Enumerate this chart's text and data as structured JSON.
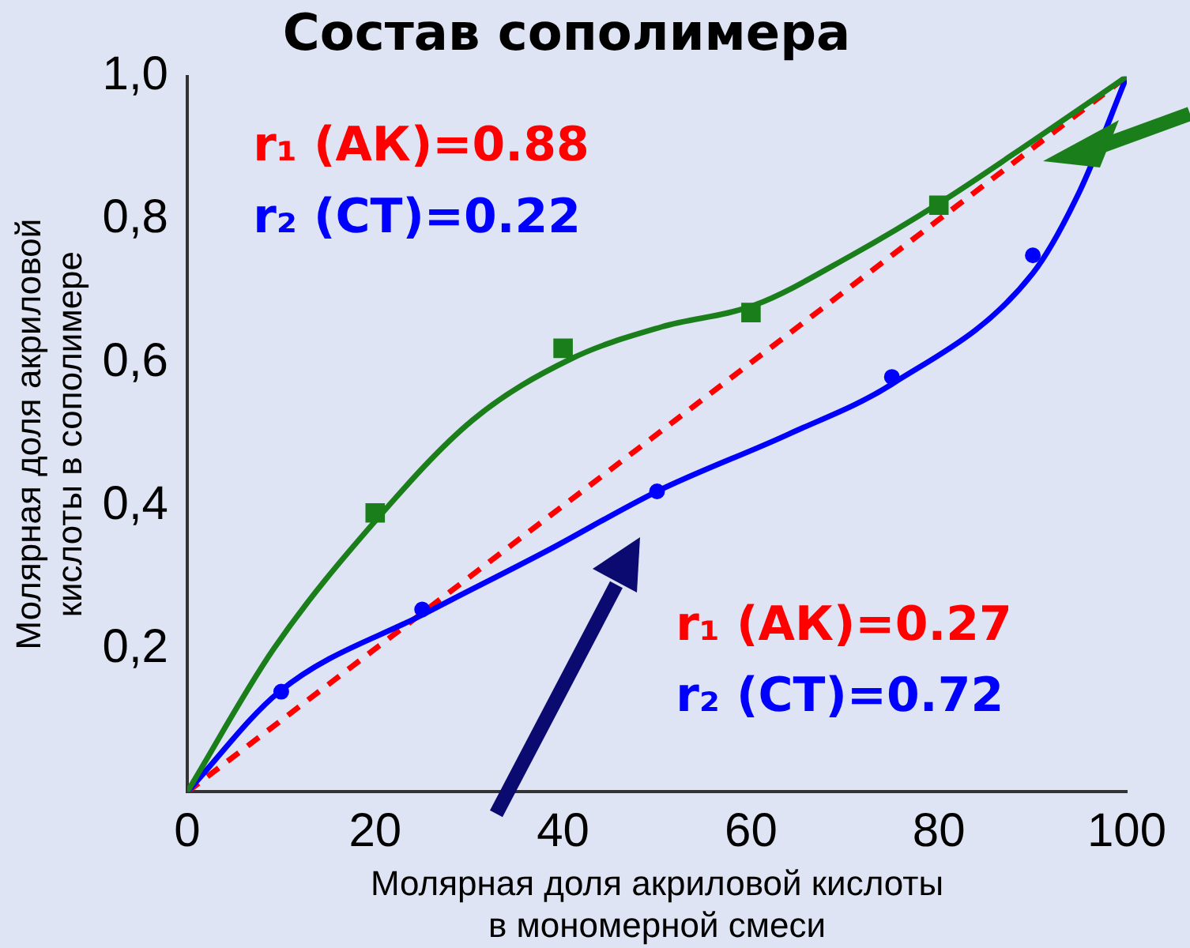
{
  "chart_data": {
    "type": "line",
    "title": "Состав сополимера",
    "xlabel": "Молярная доля акриловой кислоты\nв мономерной смеси",
    "ylabel": "Молярная доля акриловой\nкислоты в сополимере",
    "xlim": [
      0,
      100
    ],
    "xticks": [
      0,
      20,
      40,
      60,
      80,
      100
    ],
    "ylim": [
      0,
      1
    ],
    "yticks": [
      {
        "value": 0,
        "label": null
      },
      {
        "value": 0.2,
        "label": "0,2"
      },
      {
        "value": 0.4,
        "label": "0,4"
      },
      {
        "value": 0.6,
        "label": "0,6"
      },
      {
        "value": 0.8,
        "label": "0,8"
      },
      {
        "value": 1,
        "label": "1,0"
      }
    ],
    "grid": false,
    "legend": false,
    "annotations": [
      "r₁ (АК)=0.88",
      "r₂ (СТ)=0.22",
      "r₁ (АК)=0.27",
      "r₂ (СТ)=0.72"
    ],
    "series": [
      {
        "color": "#1a7f1a",
        "marker": "none",
        "line_style": "solid",
        "x": [
          0,
          9.2,
          20.1,
          30.4,
          40.8,
          50.5,
          60.3,
          70.7,
          80.3,
          90,
          100
        ],
        "values": [
          0,
          0.2,
          0.38,
          0.52,
          0.605,
          0.65,
          0.68,
          0.75,
          0.825,
          0.91,
          1
        ]
      },
      {
        "type": "scatter",
        "color": "#1a7f1a",
        "marker": "square",
        "x": [
          20,
          40,
          60,
          80
        ],
        "values": [
          0.39,
          0.62,
          0.67,
          0.82
        ]
      },
      {
        "color": "#0000ff",
        "marker": "none",
        "line_style": "solid",
        "x": [
          0,
          9.8,
          25.4,
          38.3,
          50,
          64,
          75,
          90,
          95,
          100
        ],
        "values": [
          0,
          0.14,
          0.25,
          0.337,
          0.42,
          0.5,
          0.57,
          0.725,
          0.84,
          1
        ]
      },
      {
        "type": "scatter",
        "color": "#0000ff",
        "marker": "circle",
        "x": [
          10,
          25,
          50,
          75,
          90
        ],
        "values": [
          0.14,
          0.255,
          0.42,
          0.58,
          0.75
        ]
      },
      {
        "color": "#ff0000",
        "marker": "none",
        "line_style": "dashed",
        "x": [
          0,
          100
        ],
        "values": [
          0,
          1
        ]
      }
    ]
  }
}
